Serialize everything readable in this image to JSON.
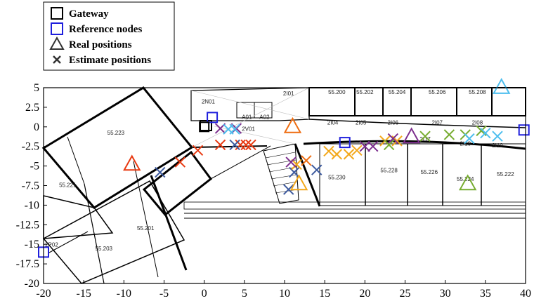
{
  "chart_data": {
    "type": "scatter",
    "title": "",
    "xlabel": "",
    "ylabel": "",
    "xlim": [
      -20,
      40
    ],
    "ylim": [
      -20,
      5
    ],
    "xticks": [
      -20,
      -15,
      -10,
      -5,
      0,
      5,
      10,
      15,
      20,
      25,
      30,
      35,
      40
    ],
    "yticks": [
      5,
      2.5,
      0,
      -2.5,
      -5,
      -7.5,
      -10,
      -12.5,
      -15,
      -17.5,
      -20
    ],
    "grid": false,
    "legend_position": "top-left, above plot",
    "legend": [
      {
        "label": "Gateway",
        "marker": "square",
        "color": "#000000"
      },
      {
        "label": "Reference nodes",
        "marker": "square",
        "color": "#1f1fdc"
      },
      {
        "label": "Real positions",
        "marker": "triangle",
        "color": "#333333"
      },
      {
        "label": "Estimate positions",
        "marker": "x",
        "color": "#333333"
      }
    ],
    "gateway": [
      {
        "x": 0,
        "y": 0
      }
    ],
    "reference_nodes": [
      {
        "x": 1,
        "y": 1.2
      },
      {
        "x": 17.5,
        "y": -2
      },
      {
        "x": 39.8,
        "y": -0.4
      },
      {
        "x": -20,
        "y": -16
      }
    ],
    "groups": [
      {
        "color": "#e83a12",
        "real": {
          "x": -9,
          "y": -4.8
        },
        "estimates": [
          {
            "x": -3,
            "y": -4.5
          },
          {
            "x": -0.8,
            "y": -3
          },
          {
            "x": 2,
            "y": -2.3
          },
          {
            "x": 4.5,
            "y": -2.3
          },
          {
            "x": 5.2,
            "y": -2.3
          },
          {
            "x": 5.8,
            "y": -2.3
          }
        ]
      },
      {
        "color": "#3d5a9e",
        "real": null,
        "estimates": [
          {
            "x": -5.5,
            "y": -5.8
          },
          {
            "x": 3.8,
            "y": -2.3
          },
          {
            "x": 11.2,
            "y": -5.8
          },
          {
            "x": 14,
            "y": -5.5
          },
          {
            "x": 10.5,
            "y": -8
          }
        ]
      },
      {
        "color": "#ef6d10",
        "real": {
          "x": 11,
          "y": 0
        },
        "estimates": [
          {
            "x": 12.7,
            "y": -4.3
          }
        ]
      },
      {
        "color": "#f3a81a",
        "real": {
          "x": 11.8,
          "y": -7.3
        },
        "estimates": [
          {
            "x": 11.5,
            "y": -4.8
          },
          {
            "x": 15.5,
            "y": -3.1
          },
          {
            "x": 16.5,
            "y": -3.5
          },
          {
            "x": 18,
            "y": -3.5
          },
          {
            "x": 19,
            "y": -3
          },
          {
            "x": 22.5,
            "y": -1.8
          },
          {
            "x": 24,
            "y": -1.8
          }
        ]
      },
      {
        "color": "#7d2f8e",
        "real": {
          "x": 25.8,
          "y": -1.3
        },
        "estimates": [
          {
            "x": 2,
            "y": -0.2
          },
          {
            "x": 4,
            "y": -0.2
          },
          {
            "x": 10.8,
            "y": -4.5
          },
          {
            "x": 20,
            "y": -2.5
          },
          {
            "x": 21,
            "y": -2.5
          },
          {
            "x": 23.5,
            "y": -1.5
          }
        ]
      },
      {
        "color": "#77ac30",
        "real": {
          "x": 32.8,
          "y": -7.3
        },
        "estimates": [
          {
            "x": 23,
            "y": -2.3
          },
          {
            "x": 27.5,
            "y": -1.2
          },
          {
            "x": 30.5,
            "y": -1
          },
          {
            "x": 32.5,
            "y": -1
          },
          {
            "x": 34.5,
            "y": -0.5
          }
        ]
      },
      {
        "color": "#4dbeee",
        "real": {
          "x": 37,
          "y": 5
        },
        "estimates": [
          {
            "x": 3,
            "y": -0.3
          },
          {
            "x": 3.8,
            "y": -0.3
          },
          {
            "x": 33,
            "y": -1.5
          },
          {
            "x": 35,
            "y": -0.8
          },
          {
            "x": 36.5,
            "y": -1.2
          }
        ]
      }
    ],
    "floorplan_labels": [
      {
        "text": "2N01",
        "x": 0.5,
        "y": 3
      },
      {
        "text": "2V01",
        "x": 5.5,
        "y": -0.5
      },
      {
        "text": "A01",
        "x": 5.3,
        "y": 1
      },
      {
        "text": "A02",
        "x": 7.5,
        "y": 1
      },
      {
        "text": "2I01",
        "x": 10.5,
        "y": 4
      },
      {
        "text": "55.200",
        "x": 16.5,
        "y": 4.2
      },
      {
        "text": "55.202",
        "x": 20,
        "y": 4.2
      },
      {
        "text": "55.204",
        "x": 24,
        "y": 4.2
      },
      {
        "text": "55.206",
        "x": 29,
        "y": 4.2
      },
      {
        "text": "55.208",
        "x": 34,
        "y": 4.2
      },
      {
        "text": "2I04",
        "x": 16,
        "y": 0.3
      },
      {
        "text": "2I05",
        "x": 19.5,
        "y": 0.3
      },
      {
        "text": "2I06",
        "x": 23.5,
        "y": 0.3
      },
      {
        "text": "2I07",
        "x": 29,
        "y": 0.3
      },
      {
        "text": "2I08",
        "x": 34,
        "y": 0.3
      },
      {
        "text": "2I17",
        "x": 27.5,
        "y": -1.8
      },
      {
        "text": "2I18",
        "x": 32.5,
        "y": -2.4
      },
      {
        "text": "2I19",
        "x": 36.5,
        "y": -2.6
      },
      {
        "text": "55.223",
        "x": -11,
        "y": -1
      },
      {
        "text": "55.221",
        "x": -17,
        "y": -7.7
      },
      {
        "text": "55.201",
        "x": -7.3,
        "y": -13.2
      },
      {
        "text": "55.203",
        "x": -12.5,
        "y": -15.8
      },
      {
        "text": "2P02",
        "x": -19,
        "y": -15.3
      },
      {
        "text": "55.230",
        "x": 16.5,
        "y": -6.7
      },
      {
        "text": "55.228",
        "x": 23,
        "y": -5.8
      },
      {
        "text": "55.226",
        "x": 28,
        "y": -6
      },
      {
        "text": "55.224",
        "x": 32.5,
        "y": -6.9
      },
      {
        "text": "55.222",
        "x": 37.5,
        "y": -6.3
      }
    ]
  }
}
